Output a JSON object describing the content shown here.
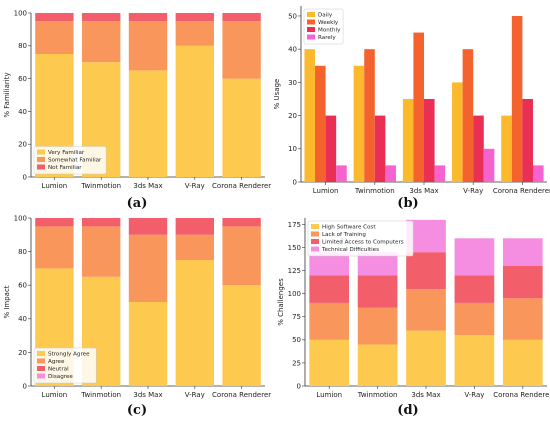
{
  "panel_labels": [
    "(a)",
    "(b)",
    "(c)",
    "(d)"
  ],
  "chart_data": [
    {
      "type": "bar",
      "stacked": true,
      "ylabel": "% Familiarity",
      "ylim": [
        0,
        100
      ],
      "yticks": [
        0,
        20,
        40,
        60,
        80,
        100
      ],
      "categories": [
        "Lumion",
        "Twinmotion",
        "3ds Max",
        "V-Ray",
        "Corona Renderer"
      ],
      "legend_position": "lower-left",
      "series": [
        {
          "name": "Very Familiar",
          "color": "#FDC94F",
          "values": [
            75,
            70,
            65,
            80,
            60
          ]
        },
        {
          "name": "Somewhat Familiar",
          "color": "#F9965C",
          "values": [
            20,
            25,
            30,
            15,
            35
          ]
        },
        {
          "name": "Not Familiar",
          "color": "#F25F6B",
          "values": [
            5,
            5,
            5,
            5,
            5
          ]
        }
      ]
    },
    {
      "type": "bar",
      "grouped": true,
      "ylabel": "% Usage",
      "ylim": [
        0,
        53
      ],
      "yticks": [
        0,
        10,
        20,
        30,
        40,
        50
      ],
      "categories": [
        "Lumion",
        "Twinmotion",
        "3ds Max",
        "V-Ray",
        "Corona Renderer"
      ],
      "legend_position": "upper-left",
      "series": [
        {
          "name": "Daily",
          "color": "#FDB92E",
          "values": [
            40,
            35,
            25,
            30,
            20
          ]
        },
        {
          "name": "Weekly",
          "color": "#F4622E",
          "values": [
            35,
            40,
            45,
            40,
            50
          ]
        },
        {
          "name": "Monthly",
          "color": "#EA2F55",
          "values": [
            20,
            20,
            25,
            20,
            25
          ]
        },
        {
          "name": "Rarely",
          "color": "#F463CE",
          "values": [
            5,
            5,
            5,
            10,
            5
          ]
        }
      ]
    },
    {
      "type": "bar",
      "stacked": true,
      "ylabel": "% Impact",
      "ylim": [
        0,
        100
      ],
      "yticks": [
        0,
        20,
        40,
        60,
        80,
        100
      ],
      "categories": [
        "Lumion",
        "Twinmotion",
        "3ds Max",
        "V-Ray",
        "Corona Renderer"
      ],
      "legend_position": "lower-left",
      "series": [
        {
          "name": "Strongly Agree",
          "color": "#FDC94F",
          "values": [
            70,
            65,
            50,
            75,
            60
          ]
        },
        {
          "name": "Agree",
          "color": "#F9965C",
          "values": [
            25,
            30,
            40,
            15,
            35
          ]
        },
        {
          "name": "Neutral",
          "color": "#F25F6B",
          "values": [
            5,
            5,
            10,
            10,
            5
          ]
        },
        {
          "name": "Disagree",
          "color": "#F58EE0",
          "values": [
            0,
            0,
            0,
            0,
            0
          ]
        }
      ]
    },
    {
      "type": "bar",
      "stacked": true,
      "ylabel": "% Challenges",
      "ylim": [
        0,
        182
      ],
      "yticks": [
        0,
        25,
        50,
        75,
        100,
        125,
        150,
        175
      ],
      "categories": [
        "Lumion",
        "Twinmotion",
        "3ds Max",
        "V-Ray",
        "Corona Renderer"
      ],
      "legend_position": "upper-left",
      "series": [
        {
          "name": "High Software Cost",
          "color": "#FDC94F",
          "values": [
            50,
            45,
            60,
            55,
            50
          ]
        },
        {
          "name": "Lack of Training",
          "color": "#F9965C",
          "values": [
            40,
            40,
            45,
            35,
            45
          ]
        },
        {
          "name": "Limited Access to Computers",
          "color": "#F25F6B",
          "values": [
            30,
            35,
            40,
            30,
            35
          ]
        },
        {
          "name": "Technical Difficulties",
          "color": "#F58EE0",
          "values": [
            25,
            25,
            35,
            40,
            30
          ]
        }
      ]
    }
  ]
}
